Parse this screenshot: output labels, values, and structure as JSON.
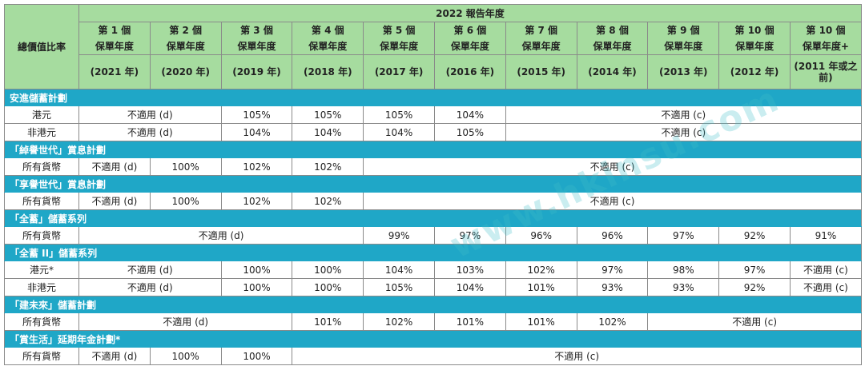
{
  "header": {
    "corner_label": "總價值比率",
    "report_year_label": "2022 報告年度",
    "policy_years": [
      {
        "year": "第 1 個",
        "sub": "保單年度",
        "period": "(2021 年)"
      },
      {
        "year": "第 2 個",
        "sub": "保單年度",
        "period": "(2020 年)"
      },
      {
        "year": "第 3 個",
        "sub": "保單年度",
        "period": "(2019 年)"
      },
      {
        "year": "第 4 個",
        "sub": "保單年度",
        "period": "(2018 年)"
      },
      {
        "year": "第 5 個",
        "sub": "保單年度",
        "period": "(2017 年)"
      },
      {
        "year": "第 6 個",
        "sub": "保單年度",
        "period": "(2016 年)"
      },
      {
        "year": "第 7 個",
        "sub": "保單年度",
        "period": "(2015 年)"
      },
      {
        "year": "第 8 個",
        "sub": "保單年度",
        "period": "(2014 年)"
      },
      {
        "year": "第 9 個",
        "sub": "保單年度",
        "period": "(2013 年)"
      },
      {
        "year": "第 10 個",
        "sub": "保單年度",
        "period": "(2012 年)"
      },
      {
        "year": "第 10 個",
        "sub": "保單年度+",
        "period": "(2011 年或之前)"
      }
    ]
  },
  "sections": [
    {
      "title": "安進儲蓄計劃",
      "rows": [
        {
          "label": "港元",
          "cells": [
            {
              "v": "不適用 (d)",
              "span": 2
            },
            {
              "v": "105%"
            },
            {
              "v": "105%"
            },
            {
              "v": "105%"
            },
            {
              "v": "104%"
            },
            {
              "v": "不適用 (c)",
              "span": 5
            }
          ]
        },
        {
          "label": "非港元",
          "cells": [
            {
              "v": "不適用 (d)",
              "span": 2
            },
            {
              "v": "104%"
            },
            {
              "v": "104%"
            },
            {
              "v": "104%"
            },
            {
              "v": "105%"
            },
            {
              "v": "不適用 (c)",
              "span": 5
            }
          ]
        }
      ]
    },
    {
      "title": "「綽譽世代」賞息計劃",
      "rows": [
        {
          "label": "所有貨幣",
          "cells": [
            {
              "v": "不適用 (d)"
            },
            {
              "v": "100%"
            },
            {
              "v": "102%"
            },
            {
              "v": "102%"
            },
            {
              "v": "不適用 (c)",
              "span": 7
            }
          ]
        }
      ]
    },
    {
      "title": "「享譽世代」賞息計劃",
      "rows": [
        {
          "label": "所有貨幣",
          "cells": [
            {
              "v": "不適用 (d)"
            },
            {
              "v": "100%"
            },
            {
              "v": "102%"
            },
            {
              "v": "102%"
            },
            {
              "v": "不適用 (c)",
              "span": 7
            }
          ]
        }
      ]
    },
    {
      "title": "「全蓄」儲蓄系列",
      "rows": [
        {
          "label": "所有貨幣",
          "cells": [
            {
              "v": "不適用 (d)",
              "span": 4
            },
            {
              "v": "99%"
            },
            {
              "v": "97%"
            },
            {
              "v": "96%"
            },
            {
              "v": "96%"
            },
            {
              "v": "97%"
            },
            {
              "v": "92%"
            },
            {
              "v": "91%"
            }
          ]
        }
      ]
    },
    {
      "title": "「全蓄 II」儲蓄系列",
      "rows": [
        {
          "label": "港元*",
          "cells": [
            {
              "v": "不適用 (d)",
              "span": 2
            },
            {
              "v": "100%"
            },
            {
              "v": "100%"
            },
            {
              "v": "104%"
            },
            {
              "v": "103%"
            },
            {
              "v": "102%"
            },
            {
              "v": "97%"
            },
            {
              "v": "98%"
            },
            {
              "v": "97%"
            },
            {
              "v": "不適用 (c)"
            }
          ]
        },
        {
          "label": "非港元",
          "cells": [
            {
              "v": "不適用 (d)",
              "span": 2
            },
            {
              "v": "100%"
            },
            {
              "v": "100%"
            },
            {
              "v": "105%"
            },
            {
              "v": "104%"
            },
            {
              "v": "101%"
            },
            {
              "v": "93%"
            },
            {
              "v": "93%"
            },
            {
              "v": "92%"
            },
            {
              "v": "不適用 (c)"
            }
          ]
        }
      ]
    },
    {
      "title": "「建未來」儲蓄計劃",
      "rows": [
        {
          "label": "所有貨幣",
          "cells": [
            {
              "v": "不適用 (d)",
              "span": 3
            },
            {
              "v": "101%"
            },
            {
              "v": "102%"
            },
            {
              "v": "101%"
            },
            {
              "v": "101%"
            },
            {
              "v": "102%"
            },
            {
              "v": "不適用 (c)",
              "span": 3
            }
          ]
        }
      ]
    },
    {
      "title": "「賞生活」延期年金計劃*",
      "rows": [
        {
          "label": "所有貨幣",
          "cells": [
            {
              "v": "不適用 (d)"
            },
            {
              "v": "100%"
            },
            {
              "v": "100%"
            },
            {
              "v": "不適用 (c)",
              "span": 8
            }
          ]
        }
      ]
    }
  ],
  "watermark": "www.hkinsu.com",
  "colors": {
    "header_bg": "#a6dc9f",
    "section_bg": "#1fa7c7",
    "border": "#8a8a8a",
    "watermark": "#40bec8"
  }
}
